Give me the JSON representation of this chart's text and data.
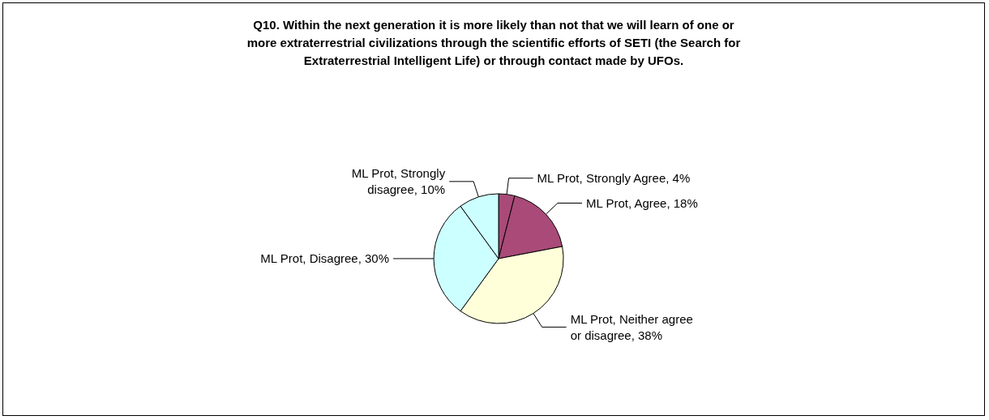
{
  "chart_data": {
    "type": "pie",
    "title": "Q10. Within the next generation it is more likely than not that we will learn of one or\nmore extraterrestrial civilizations through the scientific efforts of SETI (the Search for\nExtraterrestrial Intelligent Life) or through contact made by UFOs.",
    "categories": [
      "ML Prot, Strongly Agree",
      "ML Prot, Agree",
      "ML Prot, Neither agree or disagree",
      "ML Prot, Disagree",
      "ML Prot, Strongly disagree"
    ],
    "values": [
      4,
      18,
      38,
      30,
      10
    ],
    "colors": [
      "#a94a78",
      "#a94a78",
      "#ffffd9",
      "#ccffff",
      "#ccffff"
    ],
    "value_labels": [
      "4%",
      "18%",
      "38%",
      "30%",
      "10%"
    ],
    "legend": false
  }
}
